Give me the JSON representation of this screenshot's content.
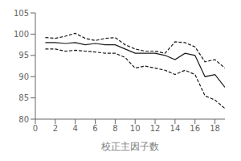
{
  "chart_data": {
    "type": "line",
    "xlabel": "校正主因子数",
    "x": [
      1,
      2,
      3,
      4,
      5,
      6,
      7,
      8,
      9,
      10,
      11,
      12,
      13,
      14,
      15,
      16,
      17,
      18,
      19
    ],
    "series": [
      {
        "color": "#1a1a1a",
        "line_style": "solid",
        "values": [
          98.0,
          98.0,
          97.8,
          98.0,
          97.5,
          97.8,
          97.5,
          97.5,
          96.5,
          95.5,
          95.5,
          95.5,
          95.0,
          94.0,
          95.5,
          95.0,
          90.0,
          90.5,
          87.5
        ]
      },
      {
        "color": "#1a1a1a",
        "line_style": "dashed",
        "values": [
          99.2,
          99.0,
          99.5,
          100.2,
          99.0,
          98.5,
          99.0,
          99.2,
          97.5,
          96.5,
          96.0,
          96.0,
          95.5,
          98.2,
          98.0,
          97.0,
          93.5,
          94.0,
          92.0
        ]
      },
      {
        "color": "#1a1a1a",
        "line_style": "dashed",
        "values": [
          96.5,
          96.5,
          96.0,
          96.2,
          96.0,
          95.8,
          95.5,
          95.5,
          94.5,
          92.0,
          92.5,
          92.0,
          91.5,
          90.5,
          91.5,
          90.5,
          85.5,
          84.5,
          82.5
        ]
      }
    ],
    "xlim": [
      0,
      19
    ],
    "ylim": [
      80,
      105
    ],
    "xticks": [
      0,
      2,
      4,
      6,
      8,
      10,
      12,
      14,
      16,
      18
    ],
    "yticks": [
      80,
      85,
      90,
      95,
      100,
      105
    ],
    "grid": false
  }
}
